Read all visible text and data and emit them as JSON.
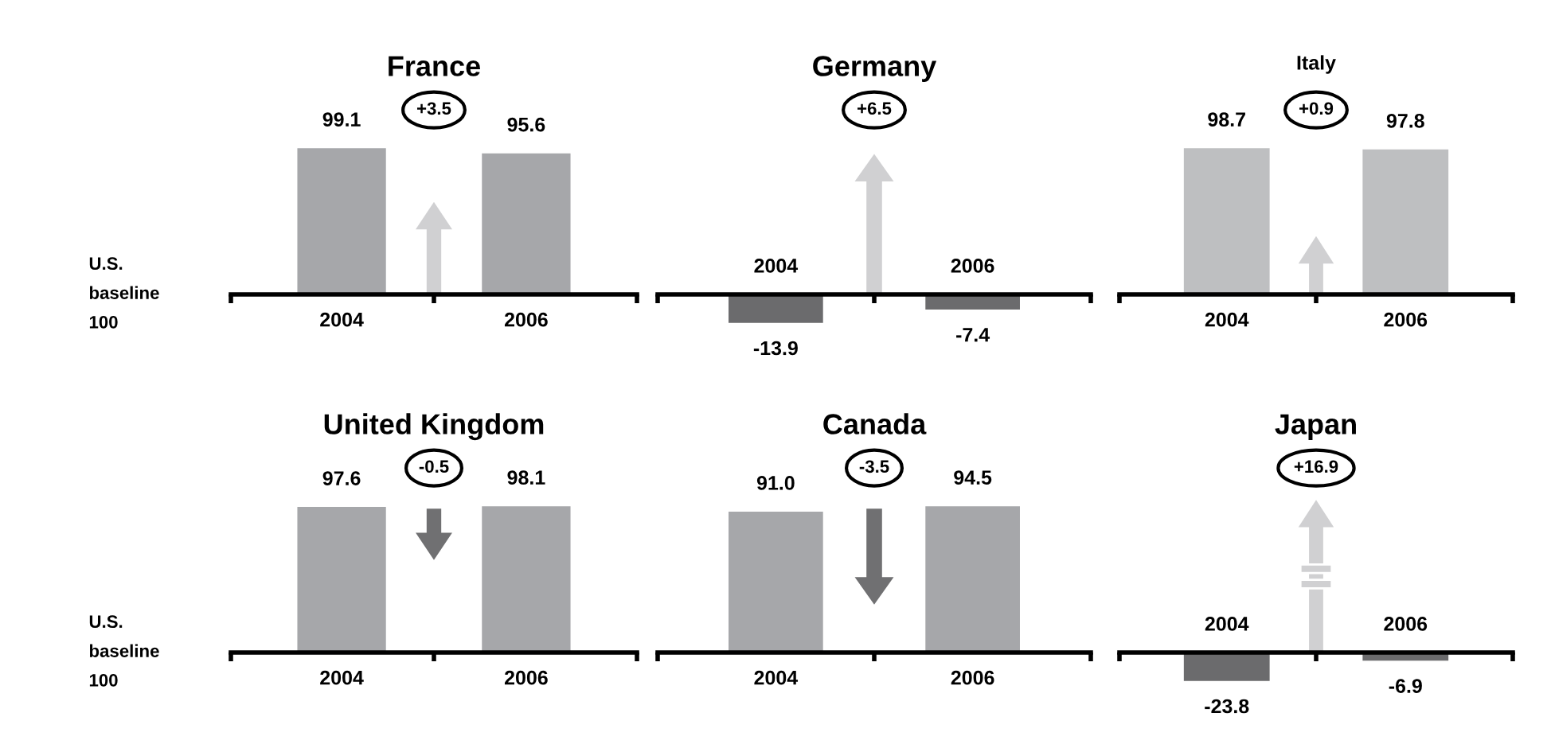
{
  "chart_data": [
    {
      "type": "bar",
      "title": "France",
      "categories": [
        "2004",
        "2006"
      ],
      "values": [
        99.1,
        95.6
      ],
      "color": "#a6a7aa",
      "data_labels": true,
      "annotations": [
        "+3.5",
        "U.S.\nbaseline\n100"
      ]
    },
    {
      "type": "bar",
      "title": "Germany",
      "categories": [
        "2004",
        "2006"
      ],
      "values": [
        -13.9,
        -7.4
      ],
      "color": "#6b6b6d",
      "data_labels": true,
      "annotations": [
        "+6.5"
      ]
    },
    {
      "type": "bar",
      "title": "Italy",
      "categories": [
        "2004",
        "2006"
      ],
      "values": [
        98.7,
        97.8
      ],
      "color": "#bebfc1",
      "data_labels": true,
      "annotations": [
        "+0.9"
      ]
    },
    {
      "type": "bar",
      "title": "United Kingdom",
      "categories": [
        "2004",
        "2006"
      ],
      "values": [
        97.6,
        98.1
      ],
      "color": "#a6a7aa",
      "data_labels": true,
      "annotations": [
        "-0.5",
        "U.S.\nbaseline\n100"
      ]
    },
    {
      "type": "bar",
      "title": "Canada",
      "categories": [
        "2004",
        "2006"
      ],
      "values": [
        91.0,
        94.5
      ],
      "value_labels": [
        "91.0",
        "94.5"
      ],
      "color": "#a6a7aa",
      "annotations": [
        "-3.5"
      ]
    },
    {
      "type": "bar",
      "title": "Japan",
      "categories": [
        "2004",
        "2006"
      ],
      "values": [
        -23.8,
        -6.9
      ],
      "color": "#6b6b6d",
      "data_labels": true,
      "annotations": [
        "+16.9"
      ]
    }
  ]
}
